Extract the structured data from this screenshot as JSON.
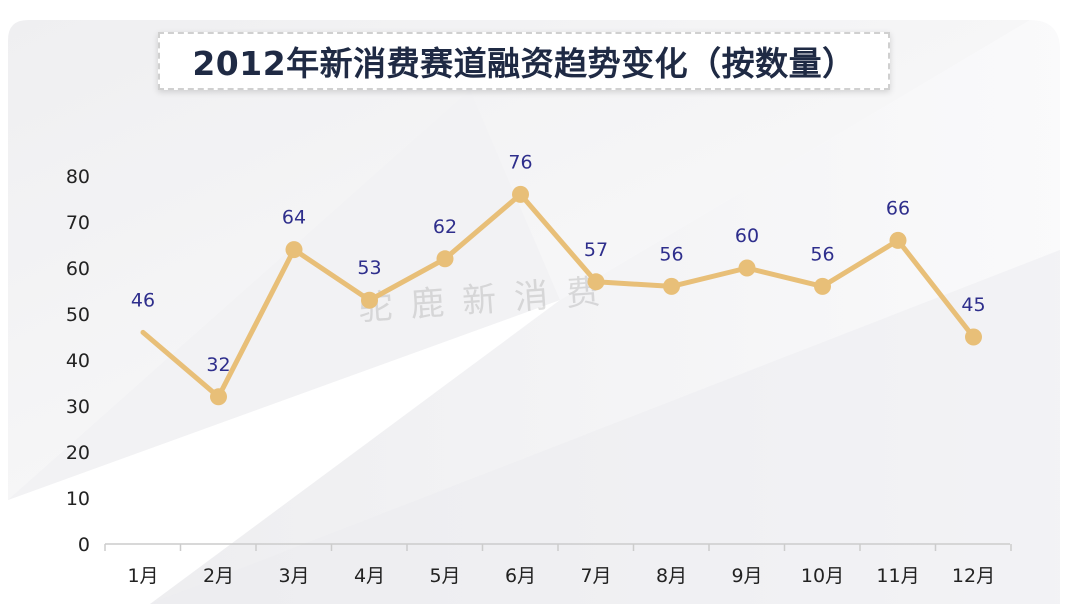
{
  "title": "2012年新消费赛道融资趋势变化（按数量）",
  "watermark": "驼鹿新消费",
  "colors": {
    "line": "#e8bf78",
    "marker": "#e8bf78",
    "data_label": "#2e2e8c",
    "axis": "#cccccc",
    "title_text": "#1f2a44"
  },
  "chart_data": {
    "type": "line",
    "categories": [
      "1月",
      "2月",
      "3月",
      "4月",
      "5月",
      "6月",
      "7月",
      "8月",
      "9月",
      "10月",
      "11月",
      "12月"
    ],
    "values": [
      46,
      32,
      64,
      53,
      62,
      76,
      57,
      56,
      60,
      56,
      66,
      45
    ],
    "title": "2012年新消费赛道融资趋势变化（按数量）",
    "xlabel": "",
    "ylabel": "",
    "ylim": [
      0,
      80
    ],
    "yticks": [
      0,
      10,
      20,
      30,
      40,
      50,
      60,
      70,
      80
    ],
    "grid": false,
    "legend": "none",
    "data_labels": true
  }
}
